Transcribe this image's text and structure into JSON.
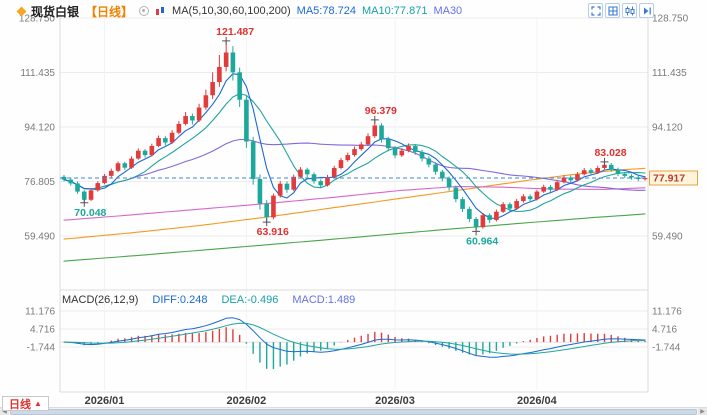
{
  "header": {
    "symbol": "现货白银",
    "timeframe": "【日线】",
    "ma_settings": "MA(5,10,30,60,100,200)",
    "ma5_label": "MA5:78.724",
    "ma10_label": "MA10:77.871",
    "ma30_label": "MA30"
  },
  "macd_header": {
    "title": "MACD(26,12,9)",
    "diff": "DIFF:0.248",
    "dea": "DEA:-0.496",
    "macd": "MACD:1.489"
  },
  "footer": {
    "tab_label": "日线",
    "tab_arrow": "▲"
  },
  "price_box": "77.917",
  "colors": {
    "up": "#e23b3b",
    "down": "#1ca99b",
    "ma5": "#1a69d4",
    "ma10": "#20a5a0",
    "ma30": "#8468d8",
    "ma60": "#d966cc",
    "ma100": "#f59a23",
    "ma200": "#4ca64c",
    "diff_line": "#1a69d4",
    "dea_line": "#20a5a0",
    "dashed_line": "#3f87d6",
    "grid": "#ececec",
    "axis_text": "#7a7a7a",
    "x_text": "#3c3c3c",
    "price_box_bg": "#fdf6dc",
    "price_box_border": "#e8a33d",
    "price_box_text": "#c0392b"
  },
  "chart_data": {
    "type": "candlestick",
    "title": "现货白银 【日线】",
    "indicators": {
      "ma5": 78.724,
      "ma10": 77.871,
      "diff": 0.248,
      "dea": -0.496,
      "macd": 1.489,
      "macd_params": [
        26,
        12,
        9
      ],
      "ma_params": [
        5,
        10,
        30,
        60,
        100,
        200
      ]
    },
    "last_price": 77.917,
    "y_axis_main": [
      {
        "label": "128.750",
        "value": 128.75
      },
      {
        "label": "111.435",
        "value": 111.435
      },
      {
        "label": "94.120",
        "value": 94.12
      },
      {
        "label": "76.805",
        "value": 76.805
      },
      {
        "label": "59.490",
        "value": 59.49
      }
    ],
    "y_axis_macd": [
      {
        "label": "11.176",
        "value": 11.176
      },
      {
        "label": "4.716",
        "value": 4.716
      },
      {
        "label": "-1.744",
        "value": -1.744
      }
    ],
    "x_axis": [
      {
        "label": "2026/01",
        "index": 6
      },
      {
        "label": "2026/02",
        "index": 27
      },
      {
        "label": "2026/03",
        "index": 49
      },
      {
        "label": "2026/04",
        "index": 70
      }
    ],
    "annotations": [
      {
        "text": "121.487",
        "index": 24,
        "price": 121.487,
        "place": "above",
        "color": "#e03131"
      },
      {
        "text": "96.379",
        "index": 46,
        "price": 96.379,
        "place": "above",
        "color": "#e03131"
      },
      {
        "text": "83.028",
        "index": 80,
        "price": 83.028,
        "place": "above",
        "color": "#e03131"
      },
      {
        "text": "70.048",
        "index": 3,
        "price": 70.048,
        "place": "below",
        "color": "#1ca99b"
      },
      {
        "text": "63.916",
        "index": 30,
        "price": 63.916,
        "place": "below",
        "color": "#e03131"
      },
      {
        "text": "60.964",
        "index": 61,
        "price": 60.964,
        "place": "below",
        "color": "#1ca99b"
      }
    ],
    "candles": [
      [
        78.3,
        78.9,
        76.8,
        77.4
      ],
      [
        77.4,
        78,
        75.5,
        76.2
      ],
      [
        76.2,
        76.8,
        72.9,
        73.6
      ],
      [
        73.6,
        74.1,
        70.048,
        71
      ],
      [
        71,
        74.6,
        70.6,
        74
      ],
      [
        74,
        76.9,
        73.6,
        76.3
      ],
      [
        76.3,
        79.2,
        75.9,
        78.6
      ],
      [
        78.6,
        80.9,
        78.1,
        80.2
      ],
      [
        80.2,
        83.2,
        79.8,
        82.6
      ],
      [
        82.6,
        83.1,
        80.5,
        81.2
      ],
      [
        81.2,
        84.8,
        80.8,
        84.1
      ],
      [
        84.1,
        87.3,
        83.7,
        86.6
      ],
      [
        86.6,
        87.1,
        84.4,
        85.2
      ],
      [
        85.2,
        88.8,
        84.8,
        88.1
      ],
      [
        88.1,
        91.4,
        87.7,
        90.6
      ],
      [
        90.6,
        91.2,
        88.3,
        89.2
      ],
      [
        89.2,
        93.1,
        88.8,
        92.3
      ],
      [
        92.3,
        96,
        91.8,
        95.1
      ],
      [
        95.1,
        98.9,
        94.6,
        97.6
      ],
      [
        97.6,
        98.4,
        94.9,
        96.2
      ],
      [
        96.2,
        101.5,
        95.7,
        100.3
      ],
      [
        100.3,
        106,
        99.6,
        104.2
      ],
      [
        104.2,
        111.5,
        103,
        108.4
      ],
      [
        108.4,
        117,
        106.9,
        113.2
      ],
      [
        113.2,
        121.487,
        111.8,
        117.8
      ],
      [
        117.8,
        119.8,
        108.9,
        111.5
      ],
      [
        111.5,
        113,
        100.5,
        102.8
      ],
      [
        102.8,
        104,
        87.5,
        89.5
      ],
      [
        89.5,
        91,
        75.8,
        77.6
      ],
      [
        77.6,
        79,
        67.9,
        69.8
      ],
      [
        69.8,
        70.9,
        63.916,
        65.4
      ],
      [
        65.4,
        73,
        64.8,
        72.3
      ],
      [
        72.3,
        77,
        71.7,
        76.1
      ],
      [
        76.1,
        76.8,
        73.2,
        74.2
      ],
      [
        74.2,
        79,
        73.8,
        78.3
      ],
      [
        78.3,
        81.4,
        77.8,
        80.6
      ],
      [
        80.6,
        81.2,
        78.2,
        79.1
      ],
      [
        79.1,
        79.7,
        76.1,
        76.9
      ],
      [
        76.9,
        77.5,
        74.7,
        75.6
      ],
      [
        75.6,
        78.9,
        75.2,
        78.2
      ],
      [
        78.2,
        81.8,
        77.8,
        81.1
      ],
      [
        81.1,
        84.3,
        80.7,
        83.6
      ],
      [
        83.6,
        86,
        83.1,
        85.2
      ],
      [
        85.2,
        87.9,
        84.7,
        87.1
      ],
      [
        87.1,
        89.4,
        86.6,
        88.6
      ],
      [
        88.6,
        92.1,
        88.1,
        91.2
      ],
      [
        91.2,
        96.379,
        90.7,
        94.6
      ],
      [
        94.6,
        95.3,
        89.2,
        90.2
      ],
      [
        90.2,
        91,
        86.4,
        87.4
      ],
      [
        87.4,
        88.1,
        84.2,
        85.1
      ],
      [
        85.1,
        87.4,
        84.6,
        86.6
      ],
      [
        86.6,
        88.9,
        86.1,
        88.1
      ],
      [
        88.1,
        88.7,
        85.3,
        86.2
      ],
      [
        86.2,
        86.9,
        83.2,
        84.1
      ],
      [
        84.1,
        84.8,
        81.3,
        82.2
      ],
      [
        82.2,
        82.9,
        79,
        79.9
      ],
      [
        79.9,
        80.5,
        76.9,
        77.8
      ],
      [
        77.8,
        78.4,
        73.9,
        74.9
      ],
      [
        74.9,
        75.5,
        70.2,
        71.2
      ],
      [
        71.2,
        71.9,
        67.1,
        68.1
      ],
      [
        68.1,
        68.8,
        63.9,
        64.9
      ],
      [
        64.9,
        65.5,
        60.964,
        62.3
      ],
      [
        62.3,
        66.8,
        61.8,
        66.1
      ],
      [
        66.1,
        66.7,
        63.6,
        64.6
      ],
      [
        64.6,
        67.9,
        64.1,
        67.2
      ],
      [
        67.2,
        70.3,
        66.8,
        69.6
      ],
      [
        69.6,
        70.2,
        67.3,
        68.2
      ],
      [
        68.2,
        71.3,
        67.8,
        70.6
      ],
      [
        70.6,
        72.8,
        70.1,
        72.1
      ],
      [
        72.1,
        72.7,
        70.3,
        71.2
      ],
      [
        71.2,
        74.2,
        70.8,
        73.6
      ],
      [
        73.6,
        75.8,
        73.2,
        75.1
      ],
      [
        75.1,
        75.7,
        73.3,
        74.2
      ],
      [
        74.2,
        77.2,
        73.8,
        76.6
      ],
      [
        76.6,
        78.8,
        76.2,
        78.1
      ],
      [
        78.1,
        78.7,
        76.4,
        77.2
      ],
      [
        77.2,
        79.8,
        76.8,
        79.1
      ],
      [
        79.1,
        81.1,
        78.7,
        80.4
      ],
      [
        80.4,
        81,
        78.8,
        79.6
      ],
      [
        79.6,
        81.8,
        79.2,
        81.1
      ],
      [
        81.1,
        83.028,
        80.7,
        82.1
      ],
      [
        82.1,
        82.7,
        79.9,
        80.6
      ],
      [
        80.6,
        81.2,
        78.5,
        79.2
      ],
      [
        79.2,
        79.8,
        77.9,
        78.6
      ],
      [
        78.6,
        79.1,
        77.4,
        78.1
      ],
      [
        78.1,
        78.6,
        76.9,
        77.6
      ],
      [
        77.6,
        78.5,
        77.1,
        77.917
      ]
    ],
    "ma_overlays": {
      "ma60": [
        [
          0,
          64.5
        ],
        [
          10,
          66.2
        ],
        [
          20,
          68.0
        ],
        [
          30,
          69.8
        ],
        [
          40,
          71.8
        ],
        [
          50,
          74.0
        ],
        [
          58,
          75.2
        ],
        [
          65,
          75.0
        ],
        [
          72,
          74.4
        ],
        [
          80,
          74.3
        ],
        [
          86,
          74.8
        ]
      ],
      "ma100": [
        [
          0,
          58.5
        ],
        [
          10,
          60.5
        ],
        [
          20,
          62.8
        ],
        [
          30,
          65.5
        ],
        [
          40,
          68.5
        ],
        [
          50,
          71.5
        ],
        [
          60,
          74.5
        ],
        [
          68,
          77.0
        ],
        [
          76,
          79.2
        ],
        [
          82,
          80.4
        ],
        [
          86,
          81.0
        ]
      ],
      "ma200": [
        [
          0,
          51.5
        ],
        [
          12,
          53.5
        ],
        [
          25,
          55.8
        ],
        [
          40,
          58.5
        ],
        [
          55,
          61.3
        ],
        [
          68,
          63.6
        ],
        [
          78,
          65.3
        ],
        [
          86,
          66.5
        ]
      ]
    }
  }
}
